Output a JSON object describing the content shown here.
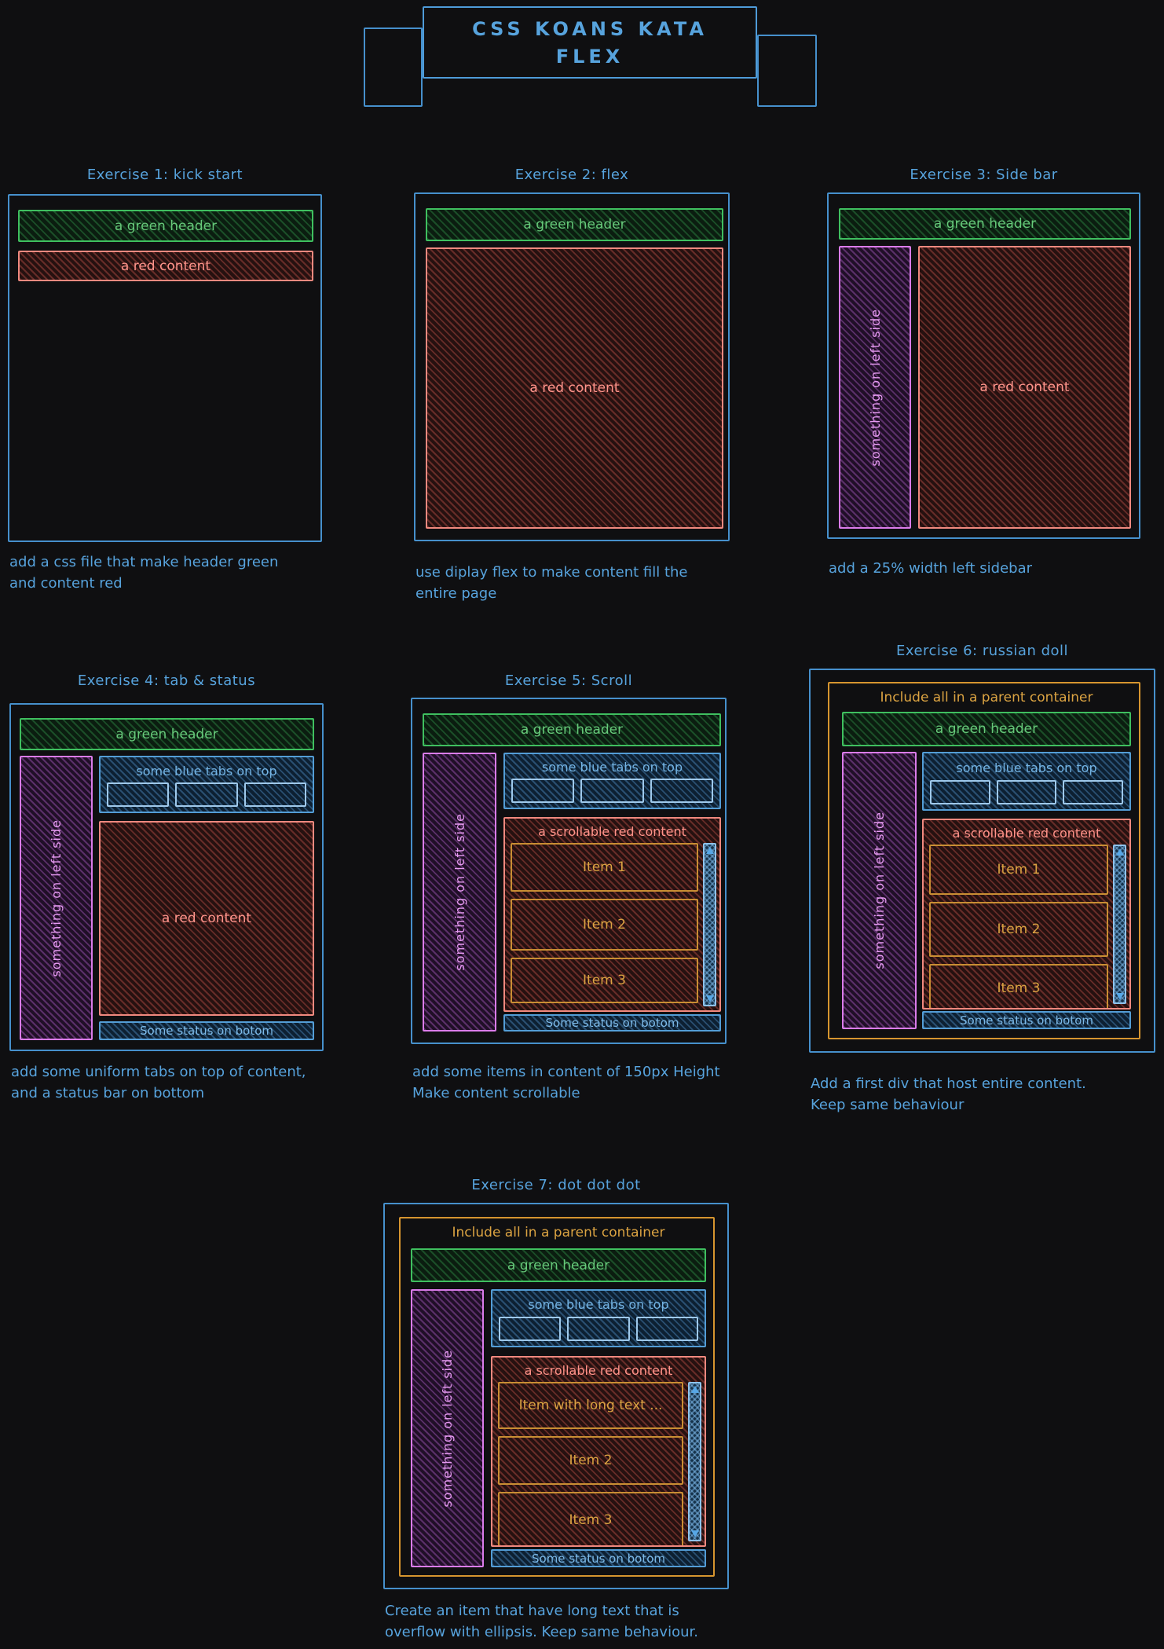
{
  "banner": {
    "line1": "CSS KOANS KATA",
    "line2": "FLEX"
  },
  "labels": {
    "green_header": "a green header",
    "red_content": "a red content",
    "scrollable_red_content": "a scrollable red content",
    "left_sidebar": "something on left side",
    "blue_tabs": "some blue tabs on top",
    "status_bar": "Some status on botom",
    "parent_container": "Include all in a parent container",
    "item_1": "Item 1",
    "item_2": "Item 2",
    "item_3": "Item 3",
    "item_long": "Item with long text ..."
  },
  "exercises": [
    {
      "title": "Exercise 1: kick start",
      "caption": "add a css file that make header green\nand content red"
    },
    {
      "title": "Exercise 2: flex",
      "caption": "use diplay flex to make content fill the\nentire page"
    },
    {
      "title": "Exercise 3: Side bar",
      "caption": "add a 25% width left sidebar"
    },
    {
      "title": "Exercise 4: tab & status",
      "caption": "add some uniform tabs on top of content,\nand a status bar on bottom"
    },
    {
      "title": "Exercise 5: Scroll",
      "caption": "add some items in content of 150px Height\nMake content scrollable"
    },
    {
      "title": "Exercise 6: russian doll",
      "caption": "Add a first div that host entire content.\nKeep same behaviour"
    },
    {
      "title": "Exercise 7: dot dot dot",
      "caption": "Create an item that have long text that is\noverflow with ellipsis. Keep same behaviour."
    }
  ],
  "colors": {
    "background": "#0f0f11",
    "blue": "#57a3dd",
    "green": "#3fbf5f",
    "red": "#f0897f",
    "purple": "#db7cea",
    "orange": "#d6952f",
    "item_orange": "#dba342"
  }
}
